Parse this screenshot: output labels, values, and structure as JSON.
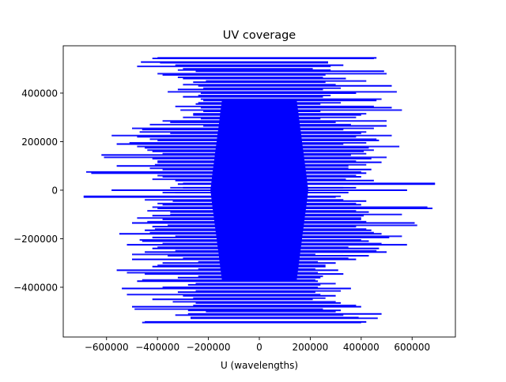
{
  "chart_data": {
    "type": "scatter",
    "title": "UV coverage",
    "xlabel": "U (wavelengths)",
    "ylabel": "",
    "xlim": [
      -770000,
      770000
    ],
    "ylim": [
      -605000,
      595000
    ],
    "xticks": [
      -600000,
      -400000,
      -200000,
      0,
      200000,
      400000,
      600000
    ],
    "xtick_labels": [
      "−600000",
      "−400000",
      "−200000",
      "0",
      "200000",
      "400000",
      "600000"
    ],
    "yticks": [
      -400000,
      -200000,
      0,
      200000,
      400000
    ],
    "ytick_labels": [
      "−400000",
      "−200000",
      "0",
      "200000",
      "400000"
    ],
    "marker": "dense horizontal point tracks",
    "grid": false,
    "series": [
      {
        "color": "#0000ff",
        "tracks": [
          {
            "v": 545000,
            "u": [
              -400000,
              460000
            ]
          },
          {
            "v": 528000,
            "u": [
              -465000,
              270000
            ]
          },
          {
            "v": 515000,
            "u": [
              -330000,
              330000
            ]
          },
          {
            "v": 500000,
            "u": [
              -300000,
              210000
            ]
          },
          {
            "v": 490000,
            "u": [
              -250000,
              490000
            ]
          },
          {
            "v": 475000,
            "u": [
              -380000,
              260000
            ]
          },
          {
            "v": 460000,
            "u": [
              -300000,
              340000
            ]
          },
          {
            "v": 445000,
            "u": [
              -260000,
              260000
            ]
          },
          {
            "v": 430000,
            "u": [
              -240000,
              520000
            ]
          },
          {
            "v": 415000,
            "u": [
              -320000,
              250000
            ]
          },
          {
            "v": 400000,
            "u": [
              -230000,
              380000
            ]
          },
          {
            "v": 385000,
            "u": [
              -300000,
              250000
            ]
          },
          {
            "v": 370000,
            "u": [
              -220000,
              460000
            ]
          },
          {
            "v": 355000,
            "u": [
              -250000,
              240000
            ]
          },
          {
            "v": 340000,
            "u": [
              -230000,
              520000
            ]
          },
          {
            "v": 325000,
            "u": [
              -220000,
              240000
            ]
          },
          {
            "v": 310000,
            "u": [
              -260000,
              400000
            ]
          },
          {
            "v": 295000,
            "u": [
              -230000,
              240000
            ]
          },
          {
            "v": 280000,
            "u": [
              -350000,
              300000
            ]
          },
          {
            "v": 265000,
            "u": [
              -220000,
              500000
            ]
          },
          {
            "v": 250000,
            "u": [
              -460000,
              330000
            ]
          },
          {
            "v": 235000,
            "u": [
              -350000,
              400000
            ]
          },
          {
            "v": 220000,
            "u": [
              -480000,
              380000
            ]
          },
          {
            "v": 205000,
            "u": [
              -400000,
              470000
            ]
          },
          {
            "v": 190000,
            "u": [
              -560000,
              330000
            ]
          },
          {
            "v": 175000,
            "u": [
              -450000,
              430000
            ]
          },
          {
            "v": 160000,
            "u": [
              -420000,
              410000
            ]
          },
          {
            "v": 145000,
            "u": [
              -620000,
              360000
            ]
          },
          {
            "v": 130000,
            "u": [
              -420000,
              440000
            ]
          },
          {
            "v": 115000,
            "u": [
              -400000,
              480000
            ]
          },
          {
            "v": 100000,
            "u": [
              -560000,
              350000
            ]
          },
          {
            "v": 85000,
            "u": [
              -380000,
              440000
            ]
          },
          {
            "v": 70000,
            "u": [
              -660000,
              420000
            ]
          },
          {
            "v": 55000,
            "u": [
              -380000,
              400000
            ]
          },
          {
            "v": 40000,
            "u": [
              -330000,
              450000
            ]
          },
          {
            "v": 25000,
            "u": [
              -320000,
              690000
            ]
          },
          {
            "v": 10000,
            "u": [
              -300000,
              380000
            ]
          },
          {
            "v": 0,
            "u": [
              -580000,
              580000
            ]
          },
          {
            "v": -10000,
            "u": [
              -330000,
              350000
            ]
          },
          {
            "v": -28000,
            "u": [
              -690000,
              300000
            ]
          },
          {
            "v": -45000,
            "u": [
              -340000,
              420000
            ]
          },
          {
            "v": -60000,
            "u": [
              -380000,
              400000
            ]
          },
          {
            "v": -75000,
            "u": [
              -400000,
              680000
            ]
          },
          {
            "v": -90000,
            "u": [
              -350000,
              430000
            ]
          },
          {
            "v": -105000,
            "u": [
              -420000,
              410000
            ]
          },
          {
            "v": -120000,
            "u": [
              -380000,
              400000
            ]
          },
          {
            "v": -135000,
            "u": [
              -500000,
              610000
            ]
          },
          {
            "v": -150000,
            "u": [
              -420000,
              380000
            ]
          },
          {
            "v": -165000,
            "u": [
              -450000,
              440000
            ]
          },
          {
            "v": -180000,
            "u": [
              -550000,
              480000
            ]
          },
          {
            "v": -195000,
            "u": [
              -420000,
              510000
            ]
          },
          {
            "v": -210000,
            "u": [
              -460000,
              430000
            ]
          },
          {
            "v": -225000,
            "u": [
              -520000,
              580000
            ]
          },
          {
            "v": -240000,
            "u": [
              -420000,
              470000
            ]
          },
          {
            "v": -255000,
            "u": [
              -450000,
              500000
            ]
          },
          {
            "v": -270000,
            "u": [
              -360000,
              430000
            ]
          },
          {
            "v": -285000,
            "u": [
              -500000,
              380000
            ]
          },
          {
            "v": -300000,
            "u": [
              -380000,
              300000
            ]
          },
          {
            "v": -315000,
            "u": [
              -420000,
              260000
            ]
          },
          {
            "v": -330000,
            "u": [
              -560000,
              310000
            ]
          },
          {
            "v": -345000,
            "u": [
              -450000,
              330000
            ]
          },
          {
            "v": -360000,
            "u": [
              -320000,
              240000
            ]
          },
          {
            "v": -375000,
            "u": [
              -480000,
              230000
            ]
          },
          {
            "v": -390000,
            "u": [
              -280000,
              240000
            ]
          },
          {
            "v": -405000,
            "u": [
              -540000,
              360000
            ]
          },
          {
            "v": -420000,
            "u": [
              -320000,
              220000
            ]
          },
          {
            "v": -435000,
            "u": [
              -300000,
              300000
            ]
          },
          {
            "v": -450000,
            "u": [
              -420000,
              210000
            ]
          },
          {
            "v": -465000,
            "u": [
              -250000,
              320000
            ]
          },
          {
            "v": -480000,
            "u": [
              -500000,
              400000
            ]
          },
          {
            "v": -495000,
            "u": [
              -280000,
              320000
            ]
          },
          {
            "v": -510000,
            "u": [
              -280000,
              480000
            ]
          },
          {
            "v": -525000,
            "u": [
              -270000,
              390000
            ]
          },
          {
            "v": -543000,
            "u": [
              -450000,
              420000
            ]
          }
        ]
      }
    ]
  }
}
